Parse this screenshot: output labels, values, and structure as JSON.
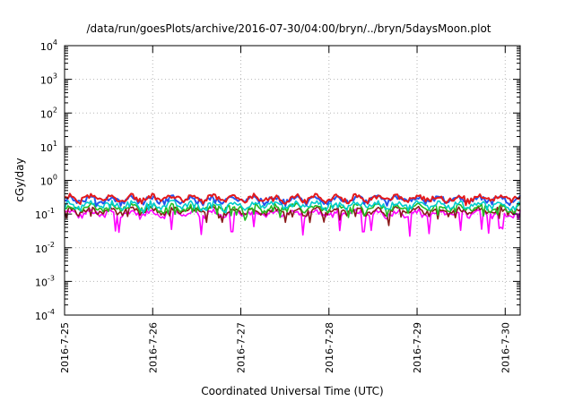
{
  "chart_data": {
    "type": "line",
    "title": "/data/run/goesPlots/archive/2016-07-30/04:00/bryn/../bryn/5daysMoon.plot",
    "xlabel": "Coordinated Universal Time (UTC)",
    "ylabel": "cGy/day",
    "yscale": "log",
    "ylim": [
      0.0001,
      10000
    ],
    "xlim": [
      0,
      5.17
    ],
    "y_ticks": [
      {
        "base": "10",
        "exp": "4"
      },
      {
        "base": "10",
        "exp": "3"
      },
      {
        "base": "10",
        "exp": "2"
      },
      {
        "base": "10",
        "exp": "1"
      },
      {
        "base": "10",
        "exp": "0"
      },
      {
        "base": "10",
        "exp": "-1"
      },
      {
        "base": "10",
        "exp": "-2"
      },
      {
        "base": "10",
        "exp": "-3"
      },
      {
        "base": "10",
        "exp": "-4"
      }
    ],
    "x_ticks": [
      "2016-7-25",
      "2016-7-26",
      "2016-7-27",
      "2016-7-28",
      "2016-7-29",
      "2016-7-30"
    ],
    "grid": true,
    "series": [
      {
        "color": "#e41a1c",
        "baseline": 0.3,
        "dip": 0.8,
        "dip_points": [
          [
            0.9,
            0.62
          ],
          [
            1.55,
            0.6
          ],
          [
            2.85,
            0.7
          ],
          [
            3.4,
            0.55
          ],
          [
            4.35,
            0.7
          ],
          [
            5.0,
            0.7
          ]
        ]
      },
      {
        "color": "#2255ee",
        "baseline": 0.27,
        "dip": 0.8,
        "dip_points": [
          [
            0.9,
            0.6
          ],
          [
            1.55,
            0.6
          ],
          [
            2.85,
            0.65
          ],
          [
            3.4,
            0.55
          ],
          [
            4.35,
            0.7
          ],
          [
            5.0,
            0.7
          ]
        ]
      },
      {
        "color": "#00cccc",
        "baseline": 0.19,
        "dip": 0.7,
        "dip_points": [
          [
            1.55,
            0.6
          ],
          [
            2.85,
            0.6
          ],
          [
            3.4,
            0.55
          ],
          [
            4.35,
            0.65
          ]
        ]
      },
      {
        "color": "#22bb22",
        "baseline": 0.155,
        "dip": 0.6,
        "dip_points": [
          [
            2.85,
            0.5
          ],
          [
            3.4,
            0.5
          ],
          [
            4.35,
            0.6
          ]
        ]
      },
      {
        "color": "#8b1a1a",
        "baseline": 0.125,
        "dip": 0.55,
        "dip_points": [
          [
            2.85,
            0.45
          ],
          [
            3.4,
            0.45
          ],
          [
            4.35,
            0.55
          ]
        ]
      },
      {
        "color": "#ff00ff",
        "baseline": 0.105,
        "dip": 0.3,
        "dip_points": [
          [
            1.9,
            0.03
          ],
          [
            3.4,
            0.03
          ],
          [
            0.45,
            0.08
          ],
          [
            2.5,
            0.07
          ],
          [
            3.05,
            0.08
          ],
          [
            4.05,
            0.08
          ],
          [
            5.15,
            0.07
          ]
        ]
      }
    ]
  }
}
